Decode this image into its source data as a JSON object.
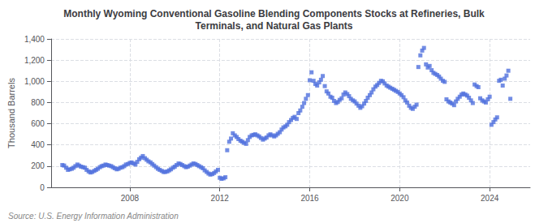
{
  "chart_data": {
    "type": "scatter",
    "title": "Monthly Wyoming Conventional Gasoline Blending Components Stocks at Refineries, Bulk\nTerminals, and Natural Gas Plants",
    "ylabel": "Thousand Barrels",
    "annotations": [
      "Source: U.S. Energy Information Administration"
    ],
    "marker": "square",
    "grid": true,
    "xlim": [
      2004.5,
      2025.8
    ],
    "xticks": [
      2008,
      2012,
      2016,
      2020,
      2024
    ],
    "ylim": [
      0,
      1400
    ],
    "yticks": [
      0,
      200,
      400,
      600,
      800,
      {
        "value": 1000,
        "label": "1,000"
      },
      {
        "value": 1200,
        "label": "1,200"
      },
      {
        "value": 1400,
        "label": "1,400"
      }
    ],
    "x": [
      2005.0,
      2005.08,
      2005.17,
      2005.25,
      2005.33,
      2005.42,
      2005.5,
      2005.58,
      2005.67,
      2005.75,
      2005.83,
      2005.92,
      2006.0,
      2006.08,
      2006.17,
      2006.25,
      2006.33,
      2006.42,
      2006.5,
      2006.58,
      2006.67,
      2006.75,
      2006.83,
      2006.92,
      2007.0,
      2007.08,
      2007.17,
      2007.25,
      2007.33,
      2007.42,
      2007.5,
      2007.58,
      2007.67,
      2007.75,
      2007.83,
      2007.92,
      2008.0,
      2008.08,
      2008.17,
      2008.25,
      2008.33,
      2008.42,
      2008.5,
      2008.58,
      2008.67,
      2008.75,
      2008.83,
      2008.92,
      2009.0,
      2009.08,
      2009.17,
      2009.25,
      2009.33,
      2009.42,
      2009.5,
      2009.58,
      2009.67,
      2009.75,
      2009.83,
      2009.92,
      2010.0,
      2010.08,
      2010.17,
      2010.25,
      2010.33,
      2010.42,
      2010.5,
      2010.58,
      2010.67,
      2010.75,
      2010.83,
      2010.92,
      2011.0,
      2011.08,
      2011.17,
      2011.25,
      2011.33,
      2011.42,
      2011.5,
      2011.58,
      2011.67,
      2011.75,
      2011.83,
      2011.92,
      2012.0,
      2012.08,
      2012.17,
      2012.25,
      2012.33,
      2012.42,
      2012.5,
      2012.58,
      2012.67,
      2012.75,
      2012.83,
      2012.92,
      2013.0,
      2013.08,
      2013.17,
      2013.25,
      2013.33,
      2013.42,
      2013.5,
      2013.58,
      2013.67,
      2013.75,
      2013.83,
      2013.92,
      2014.0,
      2014.08,
      2014.17,
      2014.25,
      2014.33,
      2014.42,
      2014.5,
      2014.58,
      2014.67,
      2014.75,
      2014.83,
      2014.92,
      2015.0,
      2015.08,
      2015.17,
      2015.25,
      2015.33,
      2015.42,
      2015.5,
      2015.58,
      2015.67,
      2015.75,
      2015.83,
      2015.92,
      2016.0,
      2016.08,
      2016.17,
      2016.25,
      2016.33,
      2016.42,
      2016.5,
      2016.58,
      2016.67,
      2016.75,
      2016.83,
      2016.92,
      2017.0,
      2017.08,
      2017.17,
      2017.25,
      2017.33,
      2017.42,
      2017.5,
      2017.58,
      2017.67,
      2017.75,
      2017.83,
      2017.92,
      2018.0,
      2018.08,
      2018.17,
      2018.25,
      2018.33,
      2018.42,
      2018.5,
      2018.58,
      2018.67,
      2018.75,
      2018.83,
      2018.92,
      2019.0,
      2019.08,
      2019.17,
      2019.25,
      2019.33,
      2019.42,
      2019.5,
      2019.58,
      2019.67,
      2019.75,
      2019.83,
      2019.92,
      2020.0,
      2020.08,
      2020.17,
      2020.25,
      2020.33,
      2020.42,
      2020.5,
      2020.58,
      2020.67,
      2020.75,
      2020.83,
      2020.92,
      2021.0,
      2021.08,
      2021.17,
      2021.25,
      2021.33,
      2021.42,
      2021.5,
      2021.58,
      2021.67,
      2021.75,
      2021.83,
      2021.92,
      2022.0,
      2022.08,
      2022.17,
      2022.25,
      2022.33,
      2022.42,
      2022.5,
      2022.58,
      2022.67,
      2022.75,
      2022.83,
      2022.92,
      2023.0,
      2023.08,
      2023.17,
      2023.25,
      2023.33,
      2023.42,
      2023.5,
      2023.58,
      2023.67,
      2023.75,
      2023.83,
      2023.92,
      2024.0,
      2024.08,
      2024.17,
      2024.25,
      2024.33,
      2024.42,
      2024.5,
      2024.58,
      2024.67,
      2024.75,
      2024.83,
      2024.92
    ],
    "values": [
      210,
      205,
      185,
      165,
      170,
      175,
      185,
      200,
      215,
      205,
      195,
      190,
      185,
      165,
      150,
      140,
      145,
      155,
      165,
      175,
      190,
      200,
      205,
      215,
      210,
      205,
      200,
      190,
      180,
      170,
      175,
      185,
      190,
      200,
      215,
      220,
      230,
      235,
      225,
      215,
      240,
      265,
      280,
      295,
      275,
      260,
      245,
      235,
      220,
      205,
      190,
      175,
      165,
      155,
      145,
      145,
      150,
      160,
      170,
      185,
      195,
      210,
      225,
      220,
      210,
      200,
      190,
      195,
      205,
      215,
      225,
      220,
      210,
      200,
      190,
      180,
      160,
      145,
      130,
      120,
      125,
      135,
      150,
      165,
      90,
      80,
      85,
      95,
      350,
      430,
      460,
      510,
      490,
      475,
      455,
      440,
      430,
      420,
      410,
      445,
      475,
      490,
      495,
      500,
      490,
      480,
      465,
      450,
      460,
      470,
      490,
      500,
      490,
      480,
      490,
      505,
      520,
      545,
      565,
      575,
      590,
      615,
      635,
      655,
      665,
      645,
      700,
      725,
      760,
      795,
      835,
      870,
      1010,
      1085,
      1005,
      975,
      960,
      990,
      1015,
      1050,
      955,
      905,
      885,
      855,
      845,
      815,
      795,
      805,
      825,
      840,
      875,
      895,
      880,
      860,
      835,
      820,
      810,
      790,
      770,
      750,
      765,
      790,
      815,
      845,
      870,
      895,
      925,
      950,
      965,
      985,
      1005,
      1000,
      980,
      960,
      950,
      940,
      930,
      920,
      910,
      900,
      885,
      870,
      850,
      820,
      800,
      770,
      750,
      740,
      760,
      780,
      1135,
      1245,
      1290,
      1315,
      1160,
      1130,
      1145,
      1105,
      1080,
      1070,
      1060,
      1045,
      1025,
      1005,
      995,
      830,
      810,
      800,
      790,
      775,
      810,
      835,
      855,
      875,
      885,
      875,
      865,
      845,
      820,
      795,
      970,
      955,
      945,
      840,
      820,
      810,
      800,
      830,
      855,
      590,
      615,
      640,
      660,
      1005,
      1015,
      960,
      1025,
      1055,
      1100,
      835
    ]
  }
}
